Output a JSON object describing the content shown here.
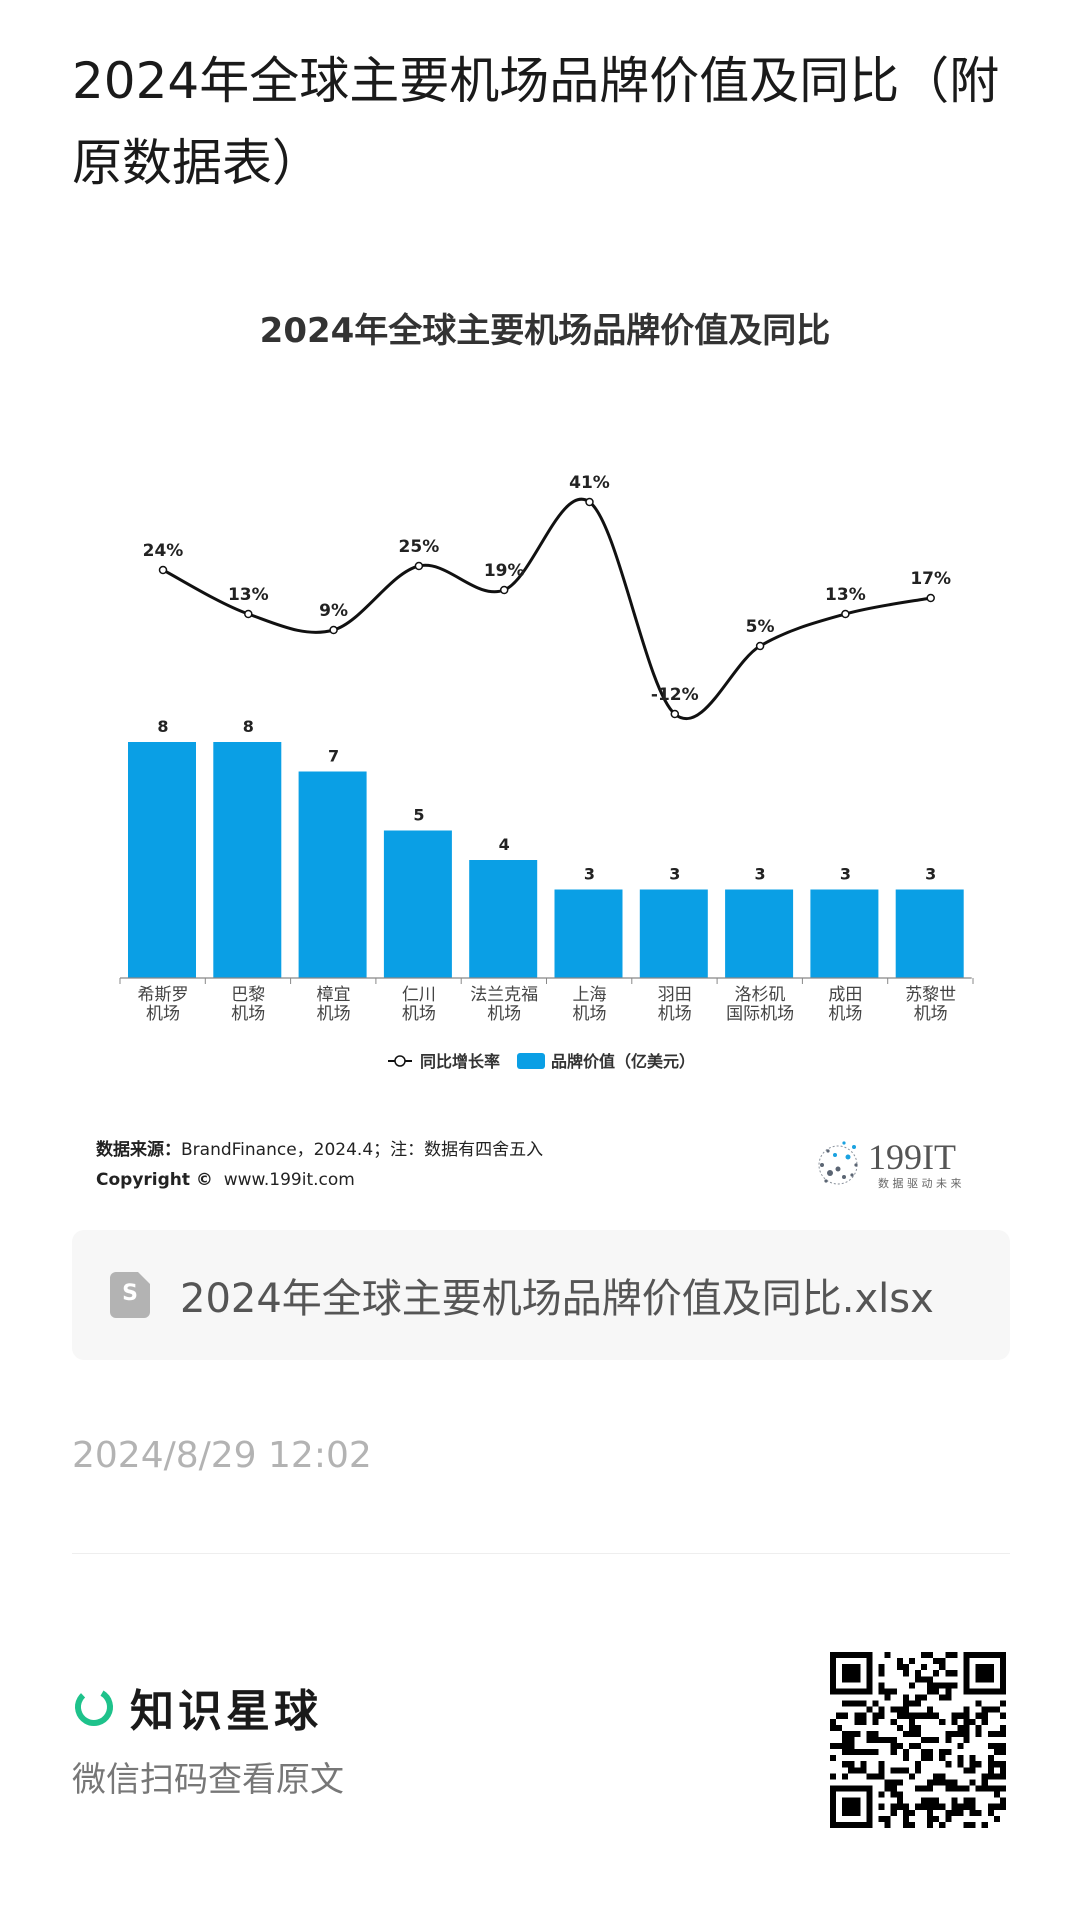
{
  "page": {
    "title": "2024年全球主要机场品牌价值及同比（附原数据表）"
  },
  "chart_data": {
    "type": "bar",
    "title": "2024年全球主要机场品牌价值及同比",
    "categories": [
      [
        "希斯罗",
        "机场"
      ],
      [
        "巴黎",
        "机场"
      ],
      [
        "樟宜",
        "机场"
      ],
      [
        "仁川",
        "机场"
      ],
      [
        "法兰克福",
        "机场"
      ],
      [
        "上海",
        "机场"
      ],
      [
        "羽田",
        "机场"
      ],
      [
        "洛杉矶",
        "国际机场"
      ],
      [
        "成田",
        "机场"
      ],
      [
        "苏黎世",
        "机场"
      ]
    ],
    "series": [
      {
        "name": "品牌价值（亿美元）",
        "type": "bar",
        "values": [
          8,
          8,
          7,
          5,
          4,
          3,
          3,
          3,
          3,
          3
        ],
        "labels": [
          "8",
          "8",
          "7",
          "5",
          "4",
          "3",
          "3",
          "3",
          "3",
          "3"
        ],
        "color": "#0a9fe5"
      },
      {
        "name": "同比增长率",
        "type": "line",
        "values": [
          24,
          13,
          9,
          25,
          19,
          41,
          -12,
          5,
          13,
          17
        ],
        "labels": [
          "24%",
          "13%",
          "9%",
          "25%",
          "19%",
          "41%",
          "-12%",
          "5%",
          "13%",
          "17%"
        ],
        "color": "#111111"
      }
    ],
    "bar_ylim": [
      0,
      8
    ],
    "line_ylim": [
      -12,
      41
    ],
    "legend_position": "bottom-center",
    "grid": false
  },
  "source": {
    "label": "数据来源：",
    "text": "BrandFinance，2024.4；注：数据有四舍五入",
    "copyright_label": "Copyright ©",
    "copyright_text": "www.199it.com"
  },
  "brand": {
    "name": "199IT",
    "slogan": "数 据 驱 动 未 来"
  },
  "attachment": {
    "icon_letter": "S",
    "file_name": "2024年全球主要机场品牌价值及同比.xlsx"
  },
  "timestamp": "2024/8/29 12:02",
  "footer": {
    "app_name": "知识星球",
    "scan_hint": "微信扫码查看原文"
  },
  "colors": {
    "bar": "#0a9fe5",
    "accent_green": "#1ec28b"
  }
}
